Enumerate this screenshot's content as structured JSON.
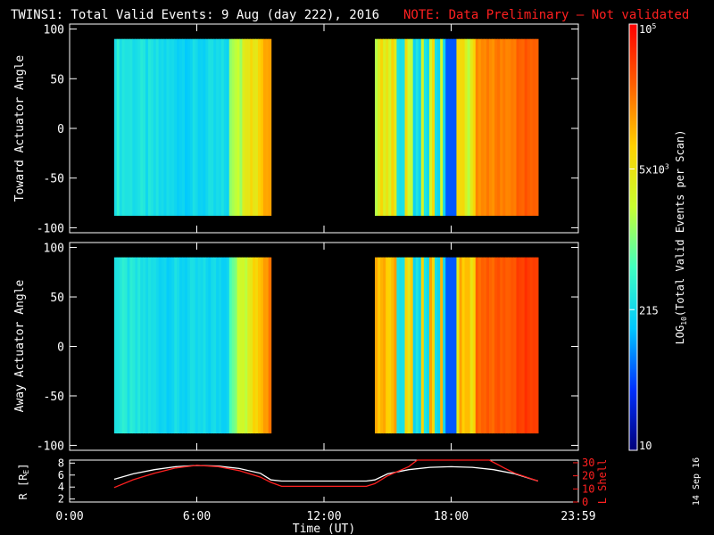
{
  "header": {
    "title": "TWINS1: Total Valid Events:  9 Aug (day 222), 2016",
    "note": "NOTE: Data Preliminary — Not validated",
    "note_color": "#ff2020",
    "date_stamp": "14 Sep 16"
  },
  "chart_data": [
    {
      "type": "heatmap",
      "panel": "toward",
      "ylabel": "Toward Actuator Angle",
      "ylim": [
        -105,
        105
      ],
      "yticks": [
        "100",
        "50",
        "0",
        "-50",
        "-100"
      ],
      "ytick_values": [
        100,
        50,
        0,
        -50,
        -100
      ],
      "x_blocks_hours": [
        [
          2.1,
          9.5
        ],
        [
          14.4,
          22.1
        ]
      ],
      "y_extent": [
        -88,
        90
      ],
      "grid": false
    },
    {
      "type": "heatmap",
      "panel": "away",
      "ylabel": "Away Actuator Angle",
      "ylim": [
        -105,
        105
      ],
      "yticks": [
        "100",
        "50",
        "0",
        "-50",
        "-100"
      ],
      "ytick_values": [
        100,
        50,
        0,
        -50,
        -100
      ],
      "x_blocks_hours": [
        [
          2.1,
          9.5
        ],
        [
          14.4,
          22.1
        ]
      ],
      "y_extent": [
        -88,
        90
      ],
      "grid": false
    },
    {
      "type": "line",
      "panel": "ephemeris",
      "ylabel_left": "R [R",
      "ylabel_left_sub": "E",
      "ylabel_left_tail": "]",
      "ylabel_right": "L Shell",
      "yticks_left": [
        "8",
        "6",
        "4",
        "2"
      ],
      "yticks_left_values": [
        8,
        6,
        4,
        2
      ],
      "ylim_left": [
        1.5,
        8.5
      ],
      "yticks_right": [
        "30",
        "20",
        "10",
        "0"
      ],
      "yticks_right_values": [
        30,
        20,
        10,
        0
      ],
      "ylim_right": [
        0,
        32
      ],
      "series": [
        {
          "color": "#ffffff",
          "axis": "left",
          "x": [
            2.1,
            3,
            4,
            5,
            6,
            7,
            8,
            9,
            9.5,
            10,
            14,
            14.4,
            15,
            16,
            17,
            18,
            19,
            20,
            21,
            22.1
          ],
          "y": [
            5.3,
            6.2,
            6.9,
            7.4,
            7.6,
            7.5,
            7.1,
            6.3,
            5.2,
            5.0,
            5.0,
            5.2,
            6.2,
            6.9,
            7.3,
            7.4,
            7.3,
            6.9,
            6.2,
            5.0
          ]
        },
        {
          "color": "#ff2020",
          "axis": "right",
          "x": [
            2.1,
            3,
            4,
            5,
            6,
            7,
            8,
            9,
            9.5,
            10,
            14,
            14.4,
            15,
            16,
            16.4,
            19.8,
            20.5,
            21,
            22.1
          ],
          "y": [
            11,
            17,
            22,
            26,
            28,
            27,
            24,
            19,
            15,
            12,
            12,
            14,
            20,
            27,
            32,
            32,
            26,
            22,
            16
          ]
        }
      ]
    }
  ],
  "x_axis": {
    "label": "Time (UT)",
    "ticks": [
      "0:00",
      "6:00",
      "12:00",
      "18:00",
      "23:59"
    ],
    "tick_values": [
      0,
      6,
      12,
      18,
      24
    ]
  },
  "colorbar": {
    "label_main": "LOG",
    "label_sub": "10",
    "label_tail": "(Total Valid  Events per Scan)",
    "ticks": [
      {
        "value": "10",
        "frac": 0.0
      },
      {
        "value": "215",
        "frac": 0.33
      },
      {
        "value": "5x10",
        "sup": "3",
        "frac": 0.66
      },
      {
        "value": "10",
        "sup": "5",
        "frac": 1.0
      }
    ],
    "colors": [
      "#00007a",
      "#0030ff",
      "#00c8ff",
      "#40ffc0",
      "#c8ff30",
      "#ffd000",
      "#ff6000",
      "#ff0000"
    ]
  }
}
